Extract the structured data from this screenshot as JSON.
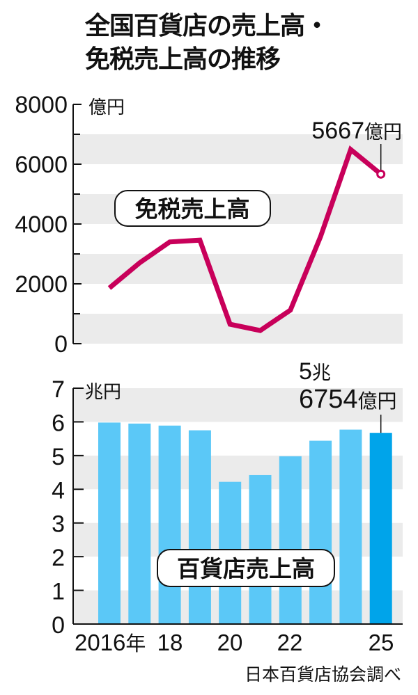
{
  "title": {
    "line1": "全国百貨店の売上高・",
    "line2": "免税売上高の推移"
  },
  "source": "日本百貨店協会調べ",
  "colors": {
    "line": "#C8005A",
    "bar": "#5BC8F7",
    "bar_highlight": "#00A4EA",
    "band": "#EBEBEB"
  },
  "chart_data": [
    {
      "type": "line",
      "title": "免税売上高",
      "ylabel": "億円",
      "ylim": [
        0,
        8000
      ],
      "yticks": [
        0,
        2000,
        4000,
        6000,
        8000
      ],
      "x": [
        2016,
        2017,
        2018,
        2019,
        2020,
        2021,
        2022,
        2023,
        2024,
        2025
      ],
      "values": [
        1860,
        2700,
        3400,
        3460,
        650,
        440,
        1120,
        3580,
        6490,
        5667
      ],
      "annotation": {
        "label": "5667億円",
        "x": 2025,
        "value": 5667
      },
      "grid": "alternating horizontal bands",
      "legend": "none"
    },
    {
      "type": "bar",
      "title": "百貨店売上高",
      "ylabel": "兆円",
      "ylim": [
        0,
        7
      ],
      "yticks": [
        0,
        1,
        2,
        3,
        4,
        5,
        6,
        7
      ],
      "categories": [
        "2016",
        "2017",
        "2018",
        "2019",
        "2020",
        "2021",
        "2022",
        "2023",
        "2024",
        "2025"
      ],
      "xtick_labels": [
        "2016年",
        "18",
        "20",
        "22",
        "25"
      ],
      "values": [
        5.98,
        5.95,
        5.89,
        5.75,
        4.22,
        4.42,
        4.98,
        5.44,
        5.77,
        5.6754
      ],
      "annotation": {
        "line1": "5兆",
        "line2": "6754億円",
        "x": "2025",
        "value": 5.6754
      },
      "highlight": "2025",
      "grid": "alternating horizontal bands",
      "legend": "none"
    }
  ]
}
